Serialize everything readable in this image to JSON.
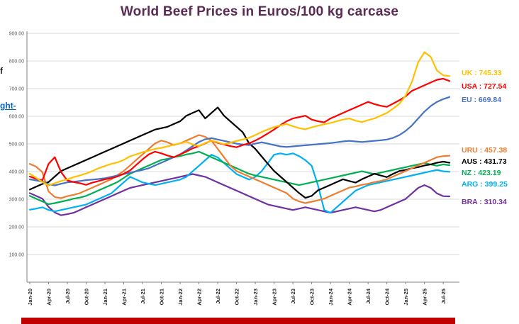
{
  "page": {
    "left_cropped_text_1": "f",
    "left_cropped_text_2": "ght-"
  },
  "colors": {
    "title": "#5A2A52",
    "grid": "#D9D9D9",
    "axis": "#808080",
    "tick_text": "#595959",
    "x_label_text": "#262626",
    "bottom_bar": "#C00000",
    "hyperlink": "#0563C1"
  },
  "chart_data": {
    "type": "line",
    "title": "World Beef Prices in Euros/100 kg carcase",
    "xlabel": "",
    "ylabel": "",
    "ylim": [
      0,
      900
    ],
    "grid": "horizontal",
    "legend_position": "right",
    "y_ticks": [
      "100.00",
      "200.00",
      "300.00",
      "400.00",
      "500.00",
      "600.00",
      "700.00",
      "800.00",
      "900.00"
    ],
    "x_tick_interval": 3,
    "x_tick_labels": [
      "Jan-20",
      "Apr-20",
      "Jul-20",
      "Oct-20",
      "Jan-21",
      "Apr-21",
      "Jul-21",
      "Oct-21",
      "Jan-22",
      "Apr-22",
      "Jul-22",
      "Oct-22",
      "Jan-23",
      "Apr-23",
      "Jul-23",
      "Oct-23",
      "Jan-24",
      "Apr-24",
      "Jul-24",
      "Oct-24",
      "Jan-25",
      "Apr-25",
      "Jul-25"
    ],
    "n_points": 68,
    "series": [
      {
        "name": "UK",
        "color": "#FFC000",
        "last_value": 745.33,
        "legend_label": "UK : 745.33",
        "legend_y": 97,
        "values": [
          392,
          378,
          362,
          350,
          358,
          366,
          372,
          380,
          386,
          393,
          402,
          412,
          420,
          428,
          433,
          442,
          455,
          462,
          470,
          476,
          482,
          486,
          491,
          497,
          502,
          508,
          498,
          492,
          503,
          512,
          506,
          499,
          504,
          511,
          516,
          522,
          532,
          543,
          552,
          561,
          567,
          572,
          564,
          557,
          553,
          560,
          566,
          571,
          576,
          582,
          588,
          592,
          584,
          579,
          586,
          592,
          602,
          612,
          628,
          645,
          675,
          725,
          795,
          832,
          815,
          765,
          748,
          745.33
        ]
      },
      {
        "name": "USA",
        "color": "#FF0000",
        "last_value": 727.54,
        "legend_label": "USA : 727.54",
        "legend_y": 116,
        "values": [
          382,
          374,
          368,
          428,
          452,
          398,
          368,
          362,
          358,
          352,
          360,
          366,
          372,
          376,
          382,
          392,
          404,
          424,
          444,
          462,
          472,
          466,
          458,
          452,
          462,
          472,
          484,
          492,
          502,
          512,
          504,
          498,
          492,
          488,
          496,
          502,
          512,
          524,
          538,
          552,
          568,
          582,
          592,
          597,
          602,
          588,
          582,
          578,
          592,
          602,
          612,
          622,
          632,
          642,
          652,
          644,
          638,
          634,
          646,
          658,
          672,
          692,
          702,
          712,
          722,
          732,
          736,
          727.54
        ]
      },
      {
        "name": "EU",
        "color": "#4472C4",
        "last_value": 669.84,
        "legend_label": "EU : 669.84",
        "legend_y": 135,
        "values": [
          372,
          368,
          364,
          354,
          350,
          356,
          361,
          363,
          366,
          369,
          371,
          373,
          376,
          381,
          386,
          391,
          396,
          401,
          406,
          412,
          422,
          432,
          442,
          452,
          462,
          477,
          492,
          507,
          517,
          521,
          516,
          511,
          506,
          501,
          498,
          496,
          501,
          506,
          501,
          496,
          491,
          489,
          491,
          493,
          495,
          497,
          499,
          501,
          503,
          506,
          509,
          511,
          509,
          507,
          509,
          511,
          513,
          516,
          522,
          532,
          547,
          567,
          592,
          617,
          637,
          652,
          662,
          669.84
        ]
      },
      {
        "name": "URU",
        "color": "#ED7D31",
        "last_value": 457.38,
        "legend_label": "URU : 457.38",
        "legend_y": 206,
        "values": [
          428,
          418,
          398,
          328,
          308,
          304,
          311,
          316,
          322,
          332,
          342,
          352,
          362,
          372,
          387,
          402,
          422,
          442,
          462,
          482,
          502,
          512,
          506,
          496,
          502,
          512,
          522,
          532,
          526,
          512,
          482,
          452,
          422,
          402,
          392,
          382,
          372,
          362,
          352,
          342,
          332,
          322,
          302,
          292,
          286,
          291,
          296,
          302,
          312,
          322,
          332,
          342,
          346,
          352,
          356,
          362,
          366,
          372,
          382,
          392,
          402,
          412,
          422,
          432,
          442,
          452,
          456,
          457.38
        ]
      },
      {
        "name": "AUS",
        "color": "#000000",
        "last_value": 431.73,
        "legend_label": "AUS : 431.73",
        "legend_y": 222,
        "values": [
          335,
          345,
          355,
          362,
          382,
          402,
          412,
          422,
          432,
          442,
          452,
          462,
          472,
          482,
          492,
          502,
          512,
          522,
          532,
          542,
          552,
          557,
          562,
          572,
          582,
          602,
          612,
          622,
          592,
          612,
          632,
          602,
          582,
          562,
          542,
          502,
          482,
          455,
          428,
          402,
          382,
          362,
          342,
          322,
          305,
          312,
          332,
          342,
          352,
          362,
          372,
          366,
          360,
          372,
          382,
          392,
          386,
          380,
          392,
          402,
          406,
          412,
          416,
          422,
          426,
          432,
          436,
          431.73
        ]
      },
      {
        "name": "NZ",
        "color": "#00B050",
        "last_value": 423.19,
        "legend_label": "NZ : 423.19",
        "legend_y": 238,
        "values": [
          312,
          302,
          292,
          282,
          286,
          291,
          296,
          302,
          306,
          312,
          322,
          332,
          342,
          352,
          362,
          377,
          392,
          402,
          412,
          422,
          432,
          442,
          446,
          452,
          456,
          462,
          466,
          472,
          462,
          452,
          442,
          432,
          422,
          412,
          402,
          392,
          386,
          381,
          376,
          371,
          366,
          361,
          356,
          351,
          356,
          361,
          366,
          371,
          376,
          381,
          386,
          391,
          396,
          401,
          396,
          391,
          396,
          401,
          406,
          411,
          416,
          421,
          426,
          431,
          426,
          421,
          426,
          423.19
        ]
      },
      {
        "name": "ARG",
        "color": "#00B0F0",
        "last_value": 399.25,
        "legend_label": "ARG : 399.25",
        "legend_y": 254,
        "values": [
          262,
          266,
          271,
          261,
          256,
          261,
          266,
          271,
          276,
          281,
          291,
          301,
          311,
          321,
          341,
          361,
          381,
          371,
          361,
          356,
          351,
          356,
          361,
          366,
          371,
          381,
          401,
          421,
          441,
          461,
          451,
          431,
          411,
          391,
          381,
          371,
          381,
          401,
          431,
          461,
          466,
          461,
          466,
          456,
          441,
          421,
          351,
          261,
          251,
          271,
          291,
          311,
          331,
          341,
          351,
          356,
          361,
          366,
          371,
          376,
          381,
          386,
          391,
          396,
          401,
          406,
          401,
          399.25
        ]
      },
      {
        "name": "BRA",
        "color": "#7030A0",
        "last_value": 310.34,
        "legend_label": "BRA : 310.34",
        "legend_y": 279,
        "values": [
          322,
          312,
          302,
          272,
          252,
          242,
          246,
          251,
          261,
          271,
          281,
          291,
          301,
          311,
          321,
          331,
          341,
          346,
          351,
          356,
          361,
          366,
          371,
          376,
          381,
          386,
          391,
          386,
          381,
          371,
          361,
          351,
          341,
          331,
          321,
          311,
          301,
          291,
          281,
          276,
          271,
          266,
          261,
          266,
          271,
          266,
          261,
          256,
          251,
          256,
          261,
          266,
          271,
          266,
          261,
          256,
          261,
          271,
          281,
          291,
          301,
          321,
          341,
          351,
          341,
          321,
          311,
          310.34
        ]
      }
    ]
  }
}
